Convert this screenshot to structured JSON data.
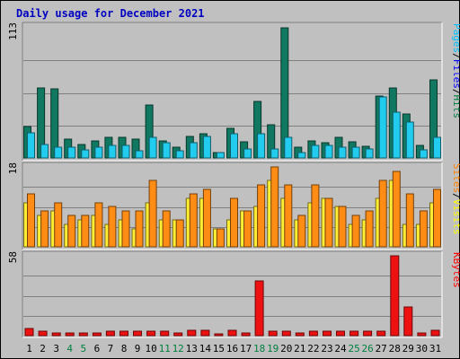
{
  "chart_data": {
    "type": "bar",
    "title": "Daily usage for December 2021",
    "categories": [
      "1",
      "2",
      "3",
      "4",
      "5",
      "6",
      "7",
      "8",
      "9",
      "10",
      "11",
      "12",
      "13",
      "14",
      "15",
      "16",
      "17",
      "18",
      "19",
      "20",
      "21",
      "22",
      "23",
      "24",
      "25",
      "26",
      "27",
      "28",
      "29",
      "30",
      "31"
    ],
    "weekend_days": [
      "4",
      "5",
      "11",
      "12",
      "18",
      "19",
      "25",
      "26"
    ],
    "grid": true,
    "colors": {
      "title": "#0000c0",
      "weekday_label": "#000000",
      "weekend_label": "#008040",
      "pages": "#00c0ff",
      "files": "#0000ff",
      "hits": "#008040",
      "visits": "#ffff00",
      "sites": "#ff8000",
      "kbytes": "#ff0000",
      "hits_bar": "#107860",
      "pages_bar": "#22ccee",
      "sites_bar": "#ff8c14",
      "visits_bar": "#ffee33",
      "kbytes_bar": "#ee1111"
    },
    "panels": [
      {
        "id": "hits-files-pages",
        "ymax_label": "113",
        "ymax": 113,
        "legend": [
          {
            "text": "Pages",
            "color_key": "pages"
          },
          {
            "text": "/",
            "color_key": "sep"
          },
          {
            "text": "Files",
            "color_key": "files"
          },
          {
            "text": "/",
            "color_key": "sep"
          },
          {
            "text": "Hits",
            "color_key": "hits"
          }
        ],
        "series": [
          {
            "name": "Hits",
            "color_key": "hits_bar",
            "values": [
              27,
              61,
              60,
              16,
              12,
              15,
              18,
              18,
              16,
              46,
              15,
              9,
              19,
              21,
              5,
              26,
              14,
              49,
              29,
              113,
              9,
              15,
              13,
              18,
              14,
              10,
              54,
              61,
              38,
              11,
              68
            ]
          },
          {
            "name": "Pages",
            "color_key": "pages_bar",
            "values": [
              22,
              12,
              9,
              9,
              7,
              9,
              11,
              11,
              6,
              18,
              13,
              6,
              13,
              19,
              5,
              21,
              8,
              21,
              8,
              18,
              5,
              11,
              11,
              9,
              9,
              8,
              53,
              40,
              31,
              7,
              18
            ]
          }
        ]
      },
      {
        "id": "visits-sites",
        "ymax_label": "18",
        "ymax": 18,
        "legend": [
          {
            "text": "Sites",
            "color_key": "sites"
          },
          {
            "text": "/",
            "color_key": "sep"
          },
          {
            "text": "Visits",
            "color_key": "visits"
          }
        ],
        "series": [
          {
            "name": "Visits",
            "color_key": "visits_bar",
            "values": [
              10,
              7,
              8,
              5,
              6,
              7,
              5,
              6,
              4,
              10,
              6,
              6,
              11,
              11,
              4,
              6,
              8,
              9,
              15,
              11,
              6,
              10,
              11,
              9,
              5,
              6,
              11,
              15,
              5,
              5,
              10
            ]
          },
          {
            "name": "Sites",
            "color_key": "sites_bar",
            "values": [
              12,
              8,
              10,
              7,
              7,
              10,
              9,
              8,
              8,
              15,
              8,
              6,
              12,
              13,
              4,
              11,
              8,
              14,
              18,
              14,
              7,
              14,
              11,
              9,
              7,
              8,
              15,
              17,
              12,
              8,
              13
            ]
          }
        ]
      },
      {
        "id": "kbytes",
        "ymax_label": "58",
        "ymax": 58,
        "legend": [
          {
            "text": "KBytes",
            "color_key": "kbytes"
          }
        ],
        "series": [
          {
            "name": "KBytes",
            "color_key": "kbytes_bar",
            "values": [
              5,
              3,
              2,
              2,
              2,
              2,
              3,
              3,
              3,
              3,
              3,
              2,
              4,
              4,
              1,
              4,
              2,
              40,
              3,
              3,
              2,
              3,
              3,
              3,
              3,
              3,
              3,
              58,
              21,
              2,
              4
            ]
          }
        ]
      }
    ]
  }
}
